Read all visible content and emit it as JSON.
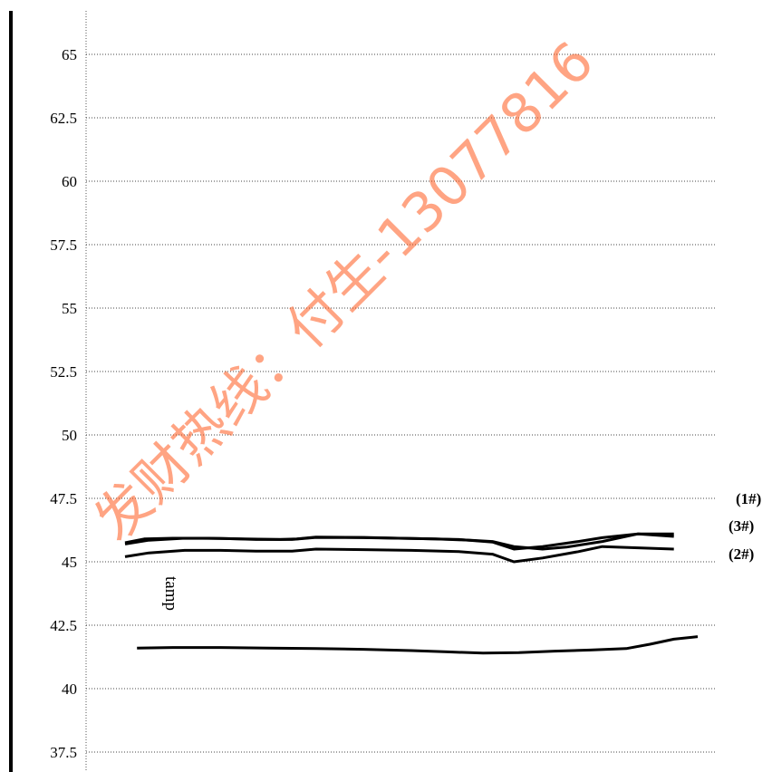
{
  "chart_data": {
    "type": "line",
    "title": "",
    "xlabel": "",
    "ylabel": "",
    "ylim": [
      36.9,
      67.5
    ],
    "xlim": [
      0,
      24
    ],
    "y_ticks": [
      "65",
      "62.5",
      "60",
      "57.5",
      "55",
      "52.5",
      "50",
      "47.5",
      "45",
      "42.5",
      "40",
      "37.5"
    ],
    "grid": true,
    "legend": "right",
    "series": [
      {
        "name": "(1#)",
        "x": [
          0,
          0.8,
          2,
          3.5,
          5,
          6.5,
          7.2,
          8,
          10,
          11.5,
          13,
          14.5,
          15.4,
          16.3,
          17.5,
          18.5,
          20,
          21.5,
          23
        ],
        "y": [
          45.75,
          45.9,
          45.93,
          45.93,
          45.9,
          45.88,
          45.9,
          45.97,
          45.96,
          45.93,
          45.9,
          45.85,
          45.8,
          45.6,
          45.5,
          45.58,
          45.8,
          46.1,
          46.1
        ]
      },
      {
        "name": "(3#)",
        "x": [
          0,
          1,
          2.5,
          4,
          5.5,
          7,
          8,
          10,
          12,
          14,
          15.4,
          16.3,
          17.5,
          19,
          20,
          21.5,
          23
        ],
        "y": [
          45.7,
          45.85,
          45.93,
          45.92,
          45.88,
          45.88,
          45.96,
          45.95,
          45.92,
          45.88,
          45.78,
          45.5,
          45.6,
          45.8,
          45.95,
          46.1,
          46.0
        ]
      },
      {
        "name": "(2#)",
        "x": [
          0,
          1,
          2.5,
          4,
          5.5,
          7,
          8,
          10,
          12,
          14,
          15.4,
          16.3,
          17.5,
          19,
          20,
          21.5,
          23
        ],
        "y": [
          45.2,
          45.35,
          45.45,
          45.45,
          45.42,
          45.42,
          45.5,
          45.48,
          45.45,
          45.4,
          45.3,
          45.0,
          45.15,
          45.4,
          45.6,
          45.55,
          45.5
        ]
      },
      {
        "name": "tamp",
        "x": [
          0.5,
          2,
          4,
          6,
          8,
          10,
          12,
          13.5,
          15,
          16.5,
          18,
          19.5,
          21,
          22,
          23,
          24
        ],
        "y": [
          41.6,
          41.62,
          41.62,
          41.6,
          41.58,
          41.55,
          41.5,
          41.45,
          41.4,
          41.42,
          41.48,
          41.52,
          41.58,
          41.75,
          41.95,
          42.05
        ]
      }
    ],
    "legend_entries": [
      "(1#)",
      "(3#)",
      "(2#)"
    ],
    "annotations": [
      "tamp"
    ]
  },
  "watermark": {
    "text": "发财热线：付生-13077816",
    "color": "#ff5a1f"
  }
}
